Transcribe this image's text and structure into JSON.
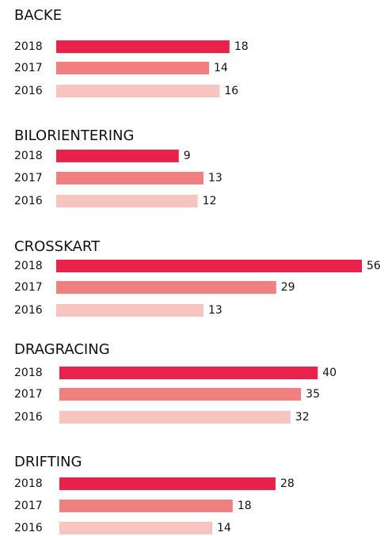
{
  "chart_data": [
    {
      "type": "bar",
      "orientation": "horizontal",
      "title": "BACKE",
      "categories": [
        "2018",
        "2017",
        "2016"
      ],
      "values": [
        18,
        14,
        16
      ],
      "colors": [
        "#e8224b",
        "#f07f7f",
        "#f8c4c0"
      ]
    },
    {
      "type": "bar",
      "orientation": "horizontal",
      "title": "BILORIENTERING",
      "categories": [
        "2018",
        "2017",
        "2016"
      ],
      "values": [
        9,
        13,
        12
      ],
      "colors": [
        "#e8224b",
        "#f07f7f",
        "#f8c4c0"
      ]
    },
    {
      "type": "bar",
      "orientation": "horizontal",
      "title": "CROSSKART",
      "categories": [
        "2018",
        "2017",
        "2016"
      ],
      "values": [
        56,
        29,
        13
      ],
      "colors": [
        "#e8224b",
        "#f07f7f",
        "#f8c4c0"
      ]
    },
    {
      "type": "bar",
      "orientation": "horizontal",
      "title": "DRAGRACING",
      "categories": [
        "2018",
        "2017",
        "2016"
      ],
      "values": [
        40,
        35,
        32
      ],
      "colors": [
        "#e8224b",
        "#f07f7f",
        "#f8c4c0"
      ]
    },
    {
      "type": "bar",
      "orientation": "horizontal",
      "title": "DRIFTING",
      "categories": [
        "2018",
        "2017",
        "2016"
      ],
      "values": [
        28,
        18,
        14
      ],
      "colors": [
        "#e8224b",
        "#f07f7f",
        "#f8c4c0"
      ]
    }
  ]
}
